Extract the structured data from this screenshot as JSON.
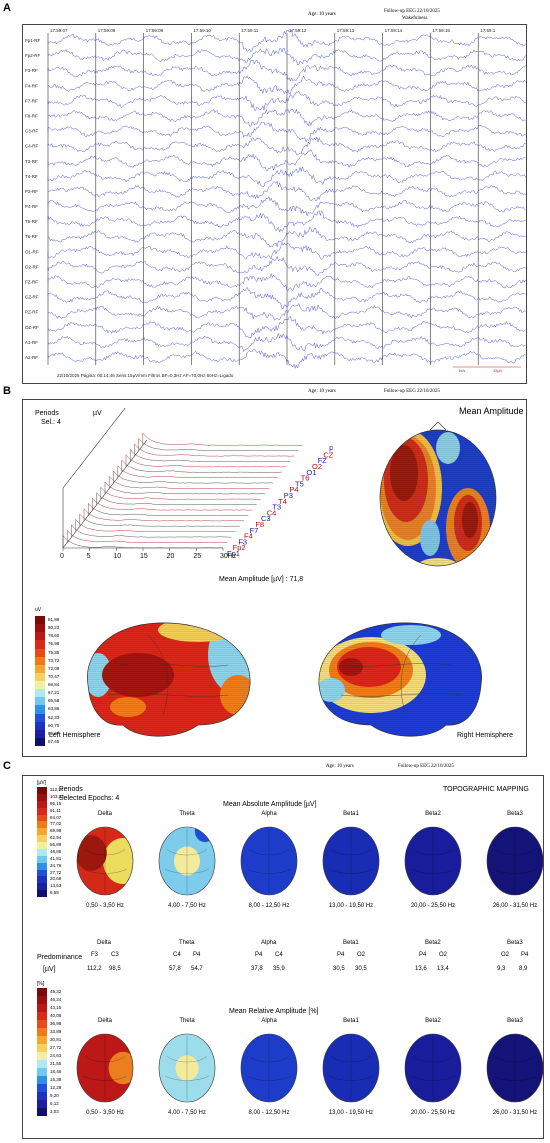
{
  "panel_a": {
    "label": "A",
    "header_age": "Age: 10 years",
    "header_followup": "Follow-up EEG 22/10/2025",
    "header_state": "Wakefulness",
    "times": [
      "17:59:07",
      "17:59:08",
      "17:59:09",
      "17:59:10",
      "17:59:11",
      "17:59:12",
      "17:59:13",
      "17:59:14",
      "17:59:15",
      "17:59:1"
    ],
    "channels": [
      "Fp1-RF",
      "Fp2-RF",
      "F3-RF",
      "F4-RF",
      "F7-RF",
      "F8-RF",
      "C3-RF",
      "C4-RF",
      "T3-RF",
      "T4-RF",
      "P3-RF",
      "P4-RF",
      "T5-RF",
      "T6-RF",
      "O1-RF",
      "O2-RF",
      "FZ-RF",
      "CZ-RF",
      "PZ-RF",
      "OZ-RF",
      "A1-RF",
      "A2-RF"
    ],
    "footer": "22/10/2025     Página: 00:14:46    Sens:15µV/mm    Filtros   BF=0,3Hz  AF=70,0Hz  60Hz=Ligado",
    "scale_time": "1s/s",
    "scale_amp": "15µV"
  },
  "panel_b": {
    "label": "B",
    "header_age": "Age: 10 years",
    "header_followup": "Follow-up EEG 22/10/2025",
    "periods_label": "Periods",
    "sel_label": "Sel.: 4",
    "uv_label": "µV",
    "xticks": [
      "0",
      "5",
      "10",
      "15",
      "20",
      "25",
      "30Hz"
    ],
    "spectrum_channels": [
      {
        "name": "Fp1",
        "color": "#1a1aa0"
      },
      {
        "name": "Fp2",
        "color": "#b01010"
      },
      {
        "name": "F3",
        "color": "#1a1aa0"
      },
      {
        "name": "F4",
        "color": "#b01010"
      },
      {
        "name": "F7",
        "color": "#1a1aa0"
      },
      {
        "name": "F8",
        "color": "#b01010"
      },
      {
        "name": "C3",
        "color": "#1a1aa0"
      },
      {
        "name": "C4",
        "color": "#b01010"
      },
      {
        "name": "T3",
        "color": "#1a1aa0"
      },
      {
        "name": "T4",
        "color": "#b01010"
      },
      {
        "name": "P3",
        "color": "#1a1aa0"
      },
      {
        "name": "P4",
        "color": "#b01010"
      },
      {
        "name": "T5",
        "color": "#1a1aa0"
      },
      {
        "name": "T6",
        "color": "#b01010"
      },
      {
        "name": "O1",
        "color": "#1a1aa0"
      },
      {
        "name": "O2",
        "color": "#b01010"
      },
      {
        "name": "FZ",
        "color": "#1a1aa0"
      },
      {
        "name": "CZ",
        "color": "#b01010"
      },
      {
        "name": "PZ",
        "color": "#1a1aa0"
      },
      {
        "name": "OZ",
        "color": "#b01010"
      }
    ],
    "mean_amp_title": "Mean Amplitude",
    "mean_amp_text": "Mean Amplitude [µV] :  71,8",
    "colorbar_unit": "uV",
    "colorbar_values": [
      "81,86",
      "80,23",
      "78,60",
      "76,98",
      "75,35",
      "73,72",
      "72,09",
      "70,47",
      "68,84",
      "67,21",
      "65,58",
      "63,86",
      "62,33",
      "60,70",
      "59,07",
      "57,45"
    ],
    "left_label": "Left Hemisphere",
    "right_label": "Right Hemisphere"
  },
  "panel_c": {
    "label": "C",
    "header_age": "Age: 10 years",
    "header_followup": "Follow-up EEG 22/10/2025",
    "title": "TOPOGRAPHIC MAPPING",
    "periods_label": "Periods",
    "epochs_label": "Selected Epochs: 4",
    "abs_title": "Mean Absolute Amplitude [µV]",
    "rel_title": "Mean Relative Amplitude [%]",
    "abs_unit": "[µV]",
    "rel_unit": "[%]",
    "abs_scale": [
      "112,24",
      "103,23",
      "95,15",
      "91,11",
      "84,07",
      "77,02",
      "69,98",
      "62,94",
      "55,89",
      "48,85",
      "41,81",
      "34,76",
      "27,72",
      "20,68",
      "13,63",
      "6,59"
    ],
    "rel_scale": [
      "49,32",
      "46,24",
      "43,15",
      "40,06",
      "36,98",
      "33,89",
      "30,81",
      "27,72",
      "24,63",
      "21,55",
      "18,46",
      "15,38",
      "12,29",
      "9,20",
      "6,12",
      "3,03"
    ],
    "bands": [
      {
        "name": "Delta",
        "range": "0,50 - 3,50 Hz",
        "ch1": "F3",
        "ch2": "C3",
        "v1": "112,2",
        "v2": "98,5"
      },
      {
        "name": "Theta",
        "range": "4,00 - 7,50 Hz",
        "ch1": "C4",
        "ch2": "P4",
        "v1": "57,8",
        "v2": "54,7"
      },
      {
        "name": "Alpha",
        "range": "8,00 - 12,50 Hz",
        "ch1": "P4",
        "ch2": "C4",
        "v1": "37,8",
        "v2": "35,9"
      },
      {
        "name": "Beta1",
        "range": "13,00 - 19,50 Hz",
        "ch1": "P4",
        "ch2": "O2",
        "v1": "30,5",
        "v2": "30,5"
      },
      {
        "name": "Beta2",
        "range": "20,00 - 25,50 Hz",
        "ch1": "P4",
        "ch2": "O2",
        "v1": "13,6",
        "v2": "13,4"
      },
      {
        "name": "Beta3",
        "range": "26,00 - 31,50 Hz",
        "ch1": "O2",
        "ch2": "P4",
        "v1": "9,3",
        "v2": "8,9"
      }
    ],
    "predominance_label": "Predominance",
    "uv_label": "[µV]"
  }
}
